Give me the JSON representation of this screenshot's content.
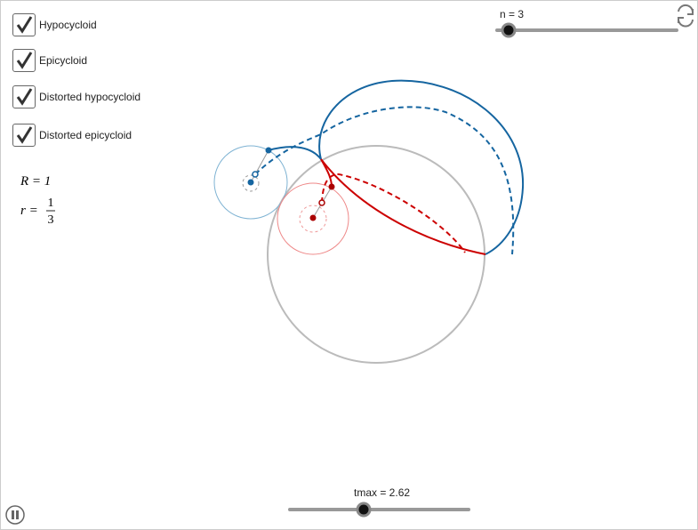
{
  "checkboxes": [
    {
      "label": "Hypocycloid",
      "checked": true
    },
    {
      "label": "Epicycloid",
      "checked": true
    },
    {
      "label": "Distorted hypocycloid",
      "checked": true
    },
    {
      "label": "Distorted epicycloid",
      "checked": true
    }
  ],
  "formulas": {
    "big_radius": "R = 1",
    "small_radius": {
      "lhs": "r =",
      "numerator": "1",
      "denominator": "3"
    }
  },
  "sliders": [
    {
      "label": "n = 3"
    },
    {
      "label": "tmax = 2.62"
    }
  ]
}
